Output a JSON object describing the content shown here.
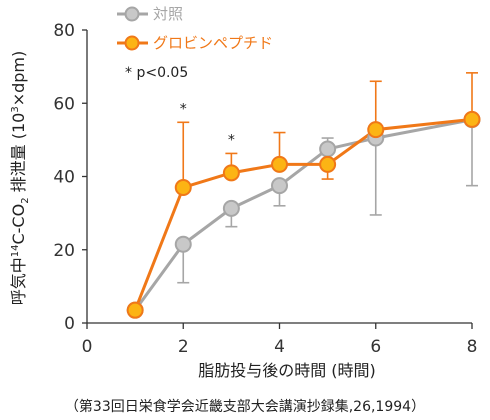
{
  "chart_data": {
    "type": "line",
    "xlabel": "脂肪投与後の時間 (時間)",
    "ylabel_main": "呼気中",
    "ylabel_sup1": "14",
    "ylabel_co": "C-CO",
    "ylabel_sub": "2",
    "ylabel_rest": " 排泄量 (10",
    "ylabel_sup2": "3",
    "ylabel_end": "×dpm)",
    "xlim": [
      0,
      8
    ],
    "ylim": [
      0,
      80
    ],
    "xticks": [
      0,
      2,
      4,
      6,
      8
    ],
    "yticks": [
      0,
      20,
      40,
      60,
      80
    ],
    "legend_position": "top-left",
    "significance_note": "* p<0.05",
    "significance_marker": "*",
    "significant_x": [
      2,
      3
    ],
    "series": [
      {
        "name": "対照",
        "color": "#a6a6a6",
        "fill": "#c8c8c8",
        "x": [
          1,
          2,
          3,
          4,
          5,
          6,
          8
        ],
        "y": [
          3.5,
          21.5,
          31.3,
          37.5,
          47.5,
          50.5,
          55.5
        ],
        "err_up": [
          0,
          0,
          0,
          0,
          3.0,
          0,
          0
        ],
        "err_down": [
          0,
          10.5,
          5.0,
          5.5,
          0,
          21.0,
          18.0
        ]
      },
      {
        "name": "グロビンペプチド",
        "color": "#f07818",
        "fill": "#fcb414",
        "x": [
          1,
          2,
          3,
          4,
          5,
          6,
          8
        ],
        "y": [
          3.5,
          37.0,
          41.0,
          43.3,
          43.3,
          52.8,
          55.6
        ],
        "err_up": [
          0,
          17.8,
          5.3,
          8.7,
          0,
          13.2,
          12.7
        ],
        "err_down": [
          0,
          0,
          0,
          0,
          4.0,
          0,
          0
        ]
      }
    ]
  },
  "source_note": "（第33回日栄食学会近畿支部大会講演抄録集,26,1994）"
}
